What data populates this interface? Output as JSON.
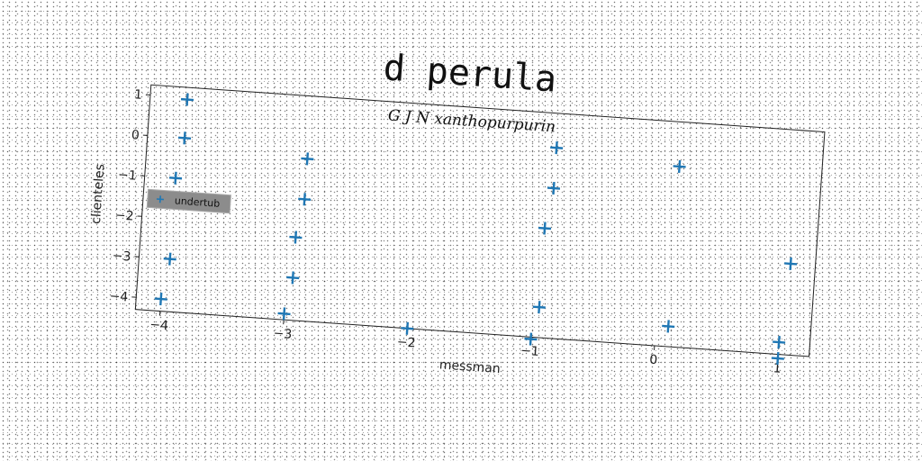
{
  "chart_data": {
    "type": "scatter",
    "title": "d perula",
    "subtitle": "G J N xanthopurpurin",
    "xlabel": "messman",
    "ylabel": "clienteles",
    "xlim": [
      -4.2,
      1.25
    ],
    "ylim": [
      -4.3,
      1.25
    ],
    "xticks": [
      "−4",
      "−3",
      "−2",
      "−1",
      "0",
      "1"
    ],
    "yticks": [
      "1",
      "0",
      "−1",
      "−2",
      "−3",
      "−4"
    ],
    "grid": false,
    "legend_position": "center-left",
    "marker": "plus",
    "series_color": "#1f77b4",
    "series": [
      {
        "name": "undertub",
        "x": [
          -3.9,
          -3.9,
          -3.95,
          -3.95,
          -4.0,
          -2.9,
          -2.9,
          -2.95,
          -2.95,
          -3.0,
          -2.0,
          -0.9,
          -0.9,
          -0.95,
          -0.95,
          -1.0,
          0.1,
          0.1,
          1.05,
          1.0,
          1.0
        ],
        "y": [
          0.95,
          0.0,
          -1.0,
          -3.0,
          -4.0,
          -0.3,
          -1.3,
          -2.25,
          -3.25,
          -4.15,
          -4.3,
          0.4,
          -0.6,
          -1.6,
          -3.55,
          -4.35,
          0.15,
          -3.8,
          -2.05,
          -4.0,
          -4.4
        ]
      }
    ]
  }
}
